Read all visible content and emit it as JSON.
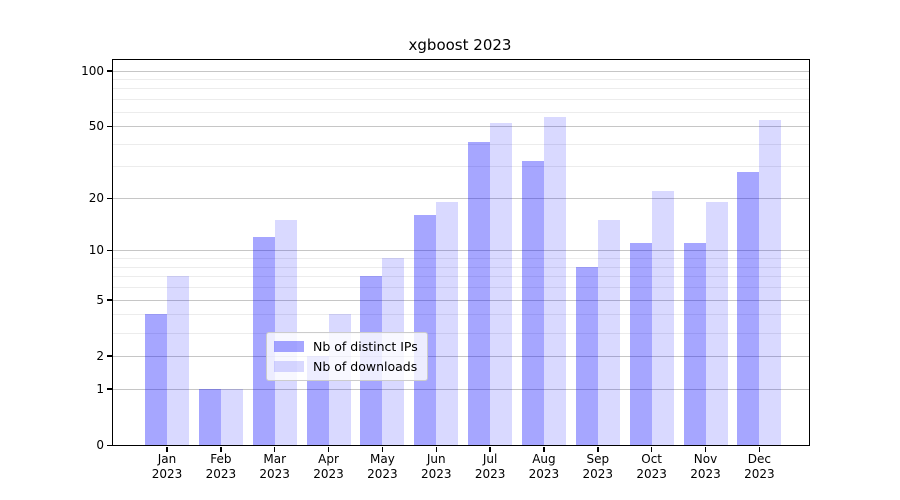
{
  "title": "xgboost 2023",
  "chart_data": {
    "type": "bar",
    "title": "xgboost 2023",
    "xlabel": "",
    "ylabel": "",
    "yscale": "log1p",
    "ylim": [
      0,
      114
    ],
    "grid": true,
    "legend_position": "lower center",
    "categories": [
      "Jan\n2023",
      "Feb\n2023",
      "Mar\n2023",
      "Apr\n2023",
      "May\n2023",
      "Jun\n2023",
      "Jul\n2023",
      "Aug\n2023",
      "Sep\n2023",
      "Oct\n2023",
      "Nov\n2023",
      "Dec\n2023"
    ],
    "series": [
      {
        "name": "Nb of distinct IPs",
        "color": "rgba(0, 0, 255, 0.35)",
        "values": [
          4,
          1,
          12,
          2,
          7,
          16,
          41,
          32,
          8,
          11,
          11,
          28
        ]
      },
      {
        "name": "Nb of downloads",
        "color": "rgba(0, 0, 255, 0.15)",
        "values": [
          7,
          1,
          15,
          4,
          9,
          19,
          52,
          56,
          15,
          22,
          19,
          54
        ]
      }
    ],
    "ytick_values": [
      100,
      50,
      20,
      10,
      5,
      2,
      1,
      0
    ],
    "ytick_labels": [
      "100",
      "50",
      "20",
      "10",
      "5",
      "2",
      "1",
      "0"
    ],
    "grid_major_values": [
      1,
      2,
      5,
      10,
      20,
      50,
      100
    ],
    "grid_minor_values": [
      3,
      4,
      6,
      7,
      8,
      9,
      30,
      40,
      60,
      70,
      80,
      90
    ]
  },
  "colors": {
    "bar_distinct_ips": "#a6a6ff",
    "bar_downloads": "#d9d9ff",
    "grid_major": "#c6c6c6",
    "grid_minor": "#ececec",
    "spine": "#000000",
    "text": "#000000",
    "legend_border": "#cccccc"
  },
  "legend": {
    "items": [
      {
        "label": "Nb of distinct IPs"
      },
      {
        "label": "Nb of downloads"
      }
    ]
  }
}
